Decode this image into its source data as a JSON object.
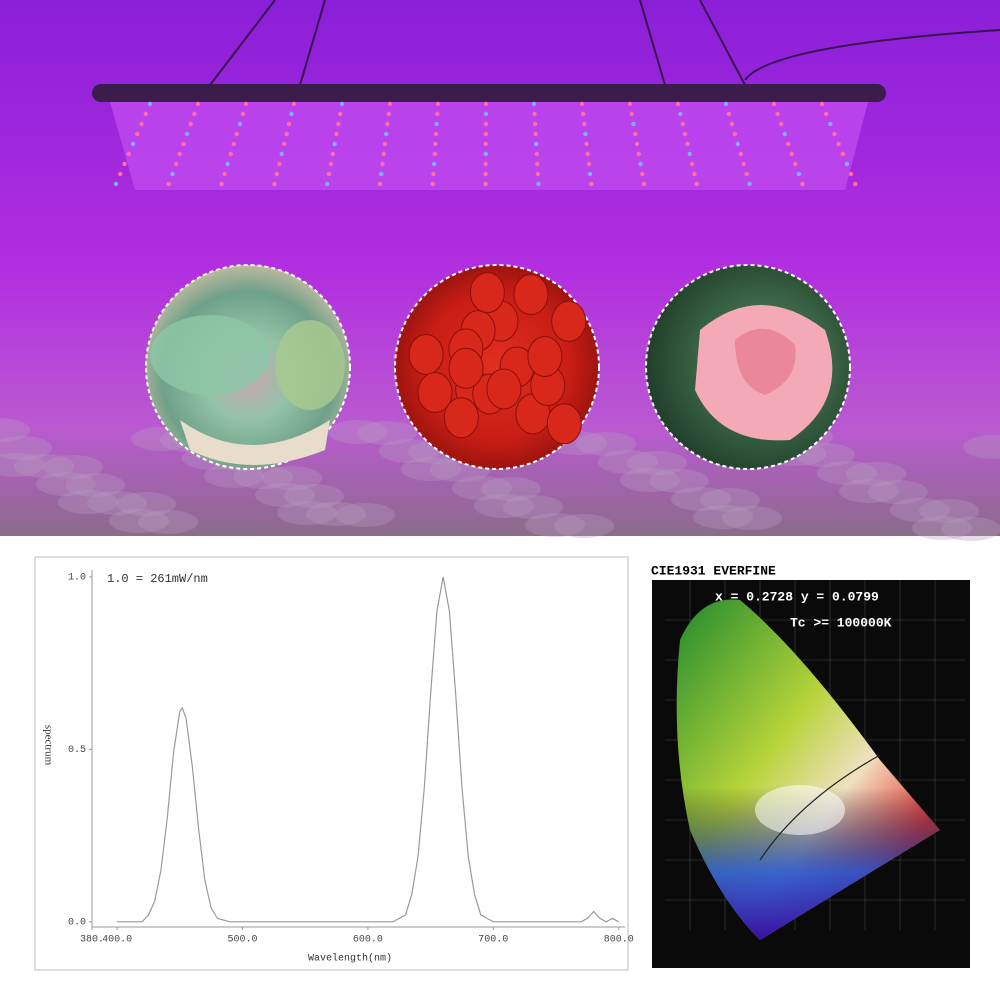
{
  "chart_data": {
    "type": "line",
    "annotation": "1.0 = 261mW/nm",
    "ylabel": "spectrum",
    "xlabel": "Wavelength(nm)",
    "color": "#9a9a9a",
    "x": [
      400,
      410,
      420,
      425,
      430,
      435,
      440,
      445,
      450,
      452,
      455,
      460,
      465,
      470,
      475,
      480,
      490,
      500,
      520,
      540,
      560,
      580,
      600,
      610,
      620,
      625,
      630,
      635,
      640,
      645,
      650,
      655,
      660,
      665,
      670,
      675,
      680,
      685,
      690,
      695,
      700,
      720,
      740,
      760,
      770,
      775,
      780,
      785,
      790,
      795,
      800
    ],
    "values": [
      0,
      0,
      0,
      0.02,
      0.06,
      0.15,
      0.3,
      0.49,
      0.61,
      0.62,
      0.59,
      0.45,
      0.27,
      0.12,
      0.04,
      0.01,
      0,
      0,
      0,
      0,
      0,
      0,
      0,
      0,
      0,
      0.01,
      0.02,
      0.08,
      0.19,
      0.39,
      0.66,
      0.9,
      1.0,
      0.9,
      0.66,
      0.39,
      0.19,
      0.08,
      0.02,
      0.01,
      0,
      0,
      0,
      0,
      0,
      0.01,
      0.03,
      0.01,
      0,
      0.01,
      0
    ],
    "xlim": [
      380,
      805
    ],
    "xticks": [
      {
        "value": 380,
        "label": "380."
      },
      {
        "value": 400,
        "label": "400.0"
      },
      {
        "value": 500,
        "label": "500.0"
      },
      {
        "value": 600,
        "label": "600.0"
      },
      {
        "value": 700,
        "label": "700.0"
      },
      {
        "value": 800,
        "label": "800.0"
      }
    ],
    "ylim": [
      -0.015,
      1.02
    ],
    "yticks": [
      {
        "value": 0,
        "label": "0.0"
      },
      0.5,
      {
        "value": 1,
        "label": "1.0"
      }
    ]
  },
  "cie_panel": {
    "title": "CIE1931 EVERFINE",
    "coordinates": "x = 0.2728 y = 0.0799",
    "temperature": "Tc >= 100000K"
  }
}
